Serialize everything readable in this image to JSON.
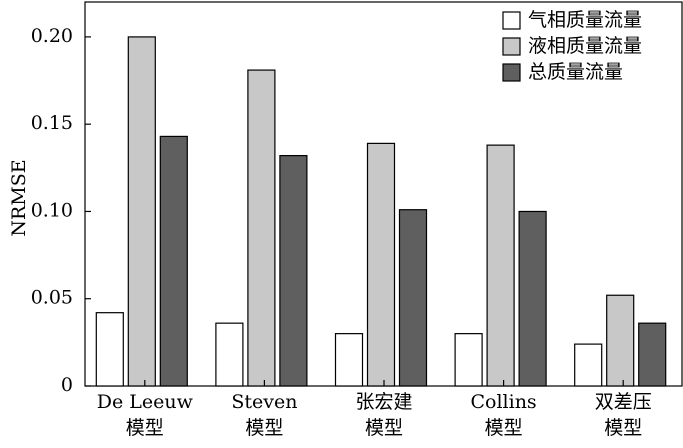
{
  "chart_data": {
    "type": "bar",
    "title": "",
    "xlabel": "",
    "ylabel": "NRMSE",
    "ylim": [
      0,
      0.22
    ],
    "yticks": [
      "0",
      "0.05",
      "0.10",
      "0.15",
      "0.20"
    ],
    "ytick_values": [
      0,
      0.05,
      0.1,
      0.15,
      0.2
    ],
    "categories": [
      [
        "De Leeuw",
        "模型"
      ],
      [
        "Steven",
        "模型"
      ],
      [
        "张宏建",
        "模型"
      ],
      [
        "Collins",
        "模型"
      ],
      [
        "双差压",
        "模型"
      ]
    ],
    "series": [
      {
        "name": "气相质量流量",
        "color": "#ffffff",
        "values": [
          0.042,
          0.036,
          0.03,
          0.03,
          0.024
        ]
      },
      {
        "name": "液相质量流量",
        "color": "#c8c8c8",
        "values": [
          0.2,
          0.181,
          0.139,
          0.138,
          0.052
        ]
      },
      {
        "name": "总质量流量",
        "color": "#5f5f5f",
        "values": [
          0.143,
          0.132,
          0.101,
          0.1,
          0.036
        ]
      }
    ],
    "legend_position": "top-right",
    "grid": false
  }
}
